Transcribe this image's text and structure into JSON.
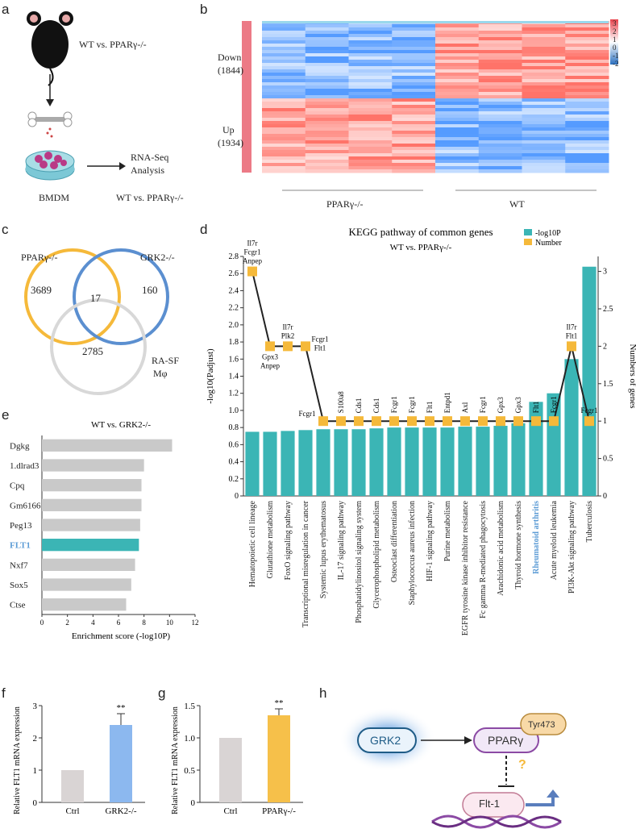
{
  "panels": {
    "a": "a",
    "b": "b",
    "c": "c",
    "d": "d",
    "e": "e",
    "f": "f",
    "g": "g",
    "h": "h"
  },
  "panel_a": {
    "comparison": "WT vs. PPARγ-/-",
    "bmdm": "BMDM",
    "rnaseq_line1": "RNA-Seq",
    "rnaseq_line2": "Analysis",
    "bottom": "WT vs. PPARγ-/-"
  },
  "panel_b": {
    "down_label": "Down",
    "down_count": "(1844)",
    "up_label": "Up",
    "up_count": "(1934)",
    "group1": "PPARγ-/-",
    "group2": "WT",
    "colorbar_ticks": [
      "3",
      "2",
      "1",
      "0",
      "-1",
      "-2"
    ]
  },
  "panel_c": {
    "set1": "PPARγ-/-",
    "set2": "GRK2-/-",
    "set3_line1": "RA-SF",
    "set3_line2": "Mφ",
    "n1": "3689",
    "n_center": "17",
    "n2": "160",
    "n3": "2785",
    "colors": {
      "set1": "#f5b93a",
      "set2": "#5b8fd0",
      "set3": "#d8d8d8"
    }
  },
  "chart_data": [
    {
      "type": "bar",
      "title": "KEGG pathway of common genes",
      "subtitle": "WT vs. PPARγ-/-",
      "ylabel": "-log10(Padjust)",
      "y2label": "Numbers of genes",
      "ylim": [
        0,
        2.8
      ],
      "y2lim": [
        0,
        3.2
      ],
      "yticks": [
        "0",
        "0.2",
        "0.4",
        "0.6",
        "0.8",
        "1.0",
        "1.2",
        "1.4",
        "1.6",
        "1.8",
        "2.0",
        "2.2",
        "2.4",
        "2.6",
        "2.8"
      ],
      "y2ticks": [
        "0",
        "0.5",
        "1",
        "1.5",
        "2",
        "2.5",
        "3"
      ],
      "legend": [
        "-log10P",
        "Number"
      ],
      "categories": [
        "Hematopoietic cell lineage",
        "Glutathione metabolism",
        "FoxO signaling pathway",
        "Transcriptional misregulation in cancer",
        "Systemic lupus erythematosus",
        "IL-17 signaling pathway",
        "Phosphatidylinositol signaling system",
        "Glycerophospholipid metabolism",
        "Osteoclast differentiation",
        "Staphylococcus aureus infection",
        "HIF-1 signaling pathway",
        "Purine metabolism",
        "EGFR tyrosine kinase inhibitor resistance",
        "Fc gamma R-mediated phagocytosis",
        "Arachidonic acid metabolism",
        "Thyroid hormone synthesis",
        "Rheumatoid arthritis",
        "Acute myeloid leukemia",
        "PI3K-Akt signaling pathway",
        "Tuberculosis"
      ],
      "values": [
        0.75,
        0.75,
        0.76,
        0.77,
        0.78,
        0.78,
        0.78,
        0.79,
        0.8,
        0.8,
        0.8,
        0.8,
        0.81,
        0.81,
        0.82,
        0.85,
        1.1,
        1.2,
        1.6,
        2.68
      ],
      "gene_counts": [
        3,
        2,
        2,
        2,
        1,
        1,
        1,
        1,
        1,
        1,
        1,
        1,
        1,
        1,
        1,
        1,
        1,
        1,
        2,
        1
      ],
      "gene_labels": [
        "Il7r\nFcgr1\nAnpep",
        "Gpx3\nAnpep",
        "Il7r\nPlk2",
        "Fcgr1\nFlt1",
        "Fcgr1",
        "S100a8",
        "Cds1",
        "Cds1",
        "Fcgr1",
        "Fcgr1",
        "Flt1",
        "Entpd1",
        "Axl",
        "Fcgr1",
        "Gpx3",
        "Gpx3",
        "Flt1",
        "Fcgr1",
        "Il7r\nFlt1",
        "Fcgr1"
      ],
      "highlight_category": "Rheumatoid arthritis",
      "colors": {
        "bar": "#3bb5b5",
        "line": "#222222",
        "marker": "#f5b93a",
        "highlight_text": "#5b9bd5"
      }
    },
    {
      "type": "bar",
      "orientation": "horizontal",
      "title": "WT vs. GRK2-/-",
      "xlabel": "Enrichment score (-log10P)",
      "xlim": [
        0,
        12
      ],
      "xticks": [
        "0",
        "2",
        "4",
        "6",
        "8",
        "10",
        "12"
      ],
      "categories": [
        "Dgkg",
        "1.dlrad3",
        "Cpq",
        "Gm6166",
        "Peg13",
        "FLT1",
        "Nxf7",
        "Sox5",
        "Ctse"
      ],
      "values": [
        10.2,
        8.0,
        7.8,
        7.8,
        7.7,
        7.6,
        7.3,
        7.0,
        6.6
      ],
      "highlight_category": "FLT1",
      "colors": {
        "bar": "#c9c9c9",
        "highlight": "#3bb5b5",
        "highlight_text": "#5b9bd5"
      }
    },
    {
      "type": "bar",
      "ylabel": "Relative FLT1 mRNA expression",
      "ylim": [
        0,
        3
      ],
      "yticks": [
        "0",
        "1",
        "2",
        "3"
      ],
      "categories": [
        "Ctrl",
        "GRK2-/-"
      ],
      "values": [
        1.0,
        2.4
      ],
      "error": [
        0,
        0.35
      ],
      "significance": "**",
      "colors": [
        "#d9d4d4",
        "#8cb8ef"
      ]
    },
    {
      "type": "bar",
      "ylabel": "Relative FLT1 mRNA expression",
      "ylim": [
        0,
        1.5
      ],
      "yticks": [
        "0",
        "0.5",
        "1.0",
        "1.5"
      ],
      "categories": [
        "Ctrl",
        "PPARγ-/-"
      ],
      "values": [
        1.0,
        1.35
      ],
      "error": [
        0,
        0.1
      ],
      "significance": "**",
      "colors": [
        "#d9d4d4",
        "#f6c04a"
      ]
    }
  ],
  "panel_h": {
    "grk2": "GRK2",
    "ppar": "PPARγ",
    "tyr": "Tyr473",
    "question": "?",
    "flt1": "Flt-1"
  }
}
